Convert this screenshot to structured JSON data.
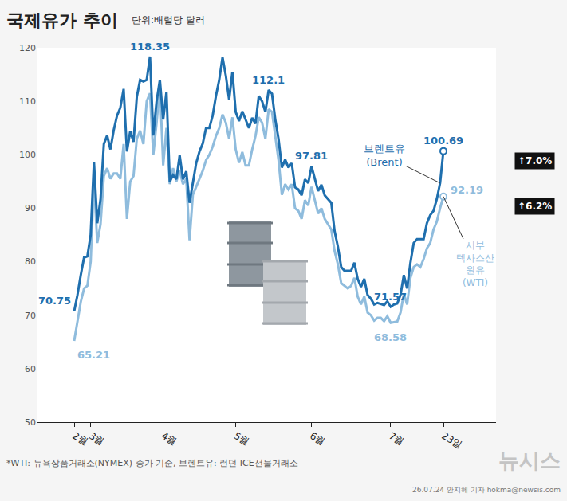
{
  "chart_data": {
    "type": "line",
    "title": "국제유가 추이",
    "subtitle": "단위:배럴당 달러",
    "categories": [
      "2월",
      null,
      null,
      null,
      null,
      "3월",
      null,
      null,
      null,
      null,
      null,
      null,
      null,
      null,
      null,
      null,
      null,
      null,
      null,
      null,
      null,
      null,
      null,
      null,
      null,
      null,
      null,
      "4월",
      null,
      null,
      null,
      null,
      null,
      null,
      null,
      null,
      null,
      null,
      null,
      null,
      null,
      null,
      null,
      null,
      null,
      null,
      null,
      null,
      null,
      "5월",
      null,
      null,
      null,
      null,
      null,
      null,
      null,
      null,
      null,
      null,
      null,
      null,
      null,
      null,
      null,
      null,
      null,
      null,
      null,
      null,
      null,
      null,
      "6월",
      null,
      null,
      null,
      null,
      null,
      null,
      null,
      null,
      null,
      null,
      null,
      null,
      null,
      null,
      null,
      null,
      null,
      null,
      null,
      null,
      null,
      null,
      null,
      "7월",
      null,
      null,
      null,
      null,
      null,
      null,
      null,
      null,
      null,
      null,
      null,
      null,
      null,
      null,
      null,
      "23일"
    ],
    "series": [
      {
        "name": "브렌트유 (Brent)",
        "color": "#1f6fae",
        "note": "↑7.0%",
        "values": [
          70.75,
          73.8,
          77.5,
          80.8,
          81.0,
          85.0,
          98.7,
          87.2,
          91.7,
          102.0,
          103.6,
          101.0,
          104.6,
          107.3,
          108.8,
          112.3,
          100.6,
          104.4,
          102.4,
          110.8,
          114.0,
          113.7,
          114.0,
          118.35,
          103.6,
          110.0,
          114.0,
          106.6,
          111.8,
          95.0,
          96.2,
          95.4,
          99.9,
          95.4,
          96.9,
          91.0,
          94.7,
          98.4,
          100.6,
          102.1,
          105.0,
          105.0,
          107.3,
          111.0,
          114.0,
          118.2,
          114.8,
          110.3,
          115.5,
          108.0,
          106.3,
          108.1,
          106.6,
          105.0,
          106.9,
          105.8,
          111.0,
          110.0,
          108.0,
          112.1,
          111.4,
          106.6,
          102.9,
          97.6,
          99.1,
          97.6,
          98.4,
          93.9,
          93.5,
          92.4,
          95.4,
          94.7,
          97.81,
          95.4,
          93.2,
          94.4,
          92.4,
          91.7,
          91.0,
          85.7,
          82.8,
          79.0,
          78.3,
          78.3,
          78.3,
          79.8,
          76.8,
          75.3,
          76.8,
          73.8,
          73.1,
          72.0,
          72.3,
          72.1,
          71.9,
          72.6,
          71.57,
          72.0,
          72.2,
          73.8,
          77.5,
          75.0,
          79.8,
          83.5,
          84.2,
          84.2,
          84.2,
          87.2,
          88.7,
          89.5,
          91.7,
          94.7,
          100.69
        ]
      },
      {
        "name": "서부 텍사스산 원유 (WTI)",
        "color": "#8fbcdd",
        "note": "↑6.2%",
        "values": [
          65.21,
          69.0,
          72.5,
          75.0,
          75.5,
          80.0,
          95.5,
          83.5,
          87.0,
          96.0,
          97.5,
          95.5,
          96.5,
          96.5,
          95.5,
          102.0,
          88.0,
          95.0,
          96.0,
          103.0,
          104.5,
          102.0,
          110.0,
          111.5,
          100.0,
          106.0,
          113.0,
          98.0,
          105.0,
          94.5,
          97.5,
          95.0,
          97.0,
          94.5,
          95.5,
          84.0,
          92.5,
          94.0,
          95.5,
          97.0,
          99.0,
          100.0,
          101.5,
          103.5,
          105.0,
          107.5,
          106.0,
          103.0,
          107.0,
          101.0,
          98.5,
          100.5,
          98.0,
          98.0,
          101.0,
          103.5,
          107.0,
          106.0,
          103.0,
          108.5,
          108.0,
          103.5,
          99.0,
          92.5,
          94.5,
          93.5,
          94.5,
          90.0,
          89.5,
          88.0,
          91.5,
          90.5,
          94.0,
          91.5,
          89.0,
          90.0,
          88.0,
          87.0,
          86.0,
          82.0,
          79.5,
          76.0,
          75.5,
          75.0,
          75.5,
          77.0,
          73.5,
          72.0,
          73.5,
          70.5,
          70.0,
          69.0,
          69.5,
          69.5,
          68.9,
          69.8,
          68.58,
          68.7,
          68.8,
          70.5,
          74.0,
          72.0,
          77.0,
          79.0,
          79.5,
          79.0,
          80.5,
          82.5,
          83.5,
          86.0,
          87.5,
          90.0,
          92.19
        ]
      }
    ],
    "annotations": [
      {
        "series": "브렌트유 (Brent)",
        "index": 0,
        "text": "70.75"
      },
      {
        "series": "브렌트유 (Brent)",
        "index": 23,
        "text": "118.35"
      },
      {
        "series": "브렌트유 (Brent)",
        "index": 59,
        "text": "112.1"
      },
      {
        "series": "브렌트유 (Brent)",
        "index": 72,
        "text": "97.81"
      },
      {
        "series": "브렌트유 (Brent)",
        "index": 96,
        "text": "71.57"
      },
      {
        "series": "브렌트유 (Brent)",
        "index": 112,
        "text": "100.69"
      },
      {
        "series": "서부 텍사스산 원유 (WTI)",
        "index": 0,
        "text": "65.21"
      },
      {
        "series": "서부 텍사스산 원유 (WTI)",
        "index": 96,
        "text": "68.58"
      },
      {
        "series": "서부 텍사스산 원유 (WTI)",
        "index": 112,
        "text": "92.19"
      }
    ],
    "ylim": [
      50,
      120
    ],
    "yticks": [
      50,
      60,
      70,
      80,
      90,
      100,
      110,
      120
    ],
    "grid": false,
    "footnote": "*WTI: 뉴욕상품거래소(NYMEX) 종가 기준, 브렌트유: 런던 ICE선물거래소",
    "credit": "26.07.24 안지혜 기자 hokma@newsis.com",
    "logo": "뉴시스"
  }
}
